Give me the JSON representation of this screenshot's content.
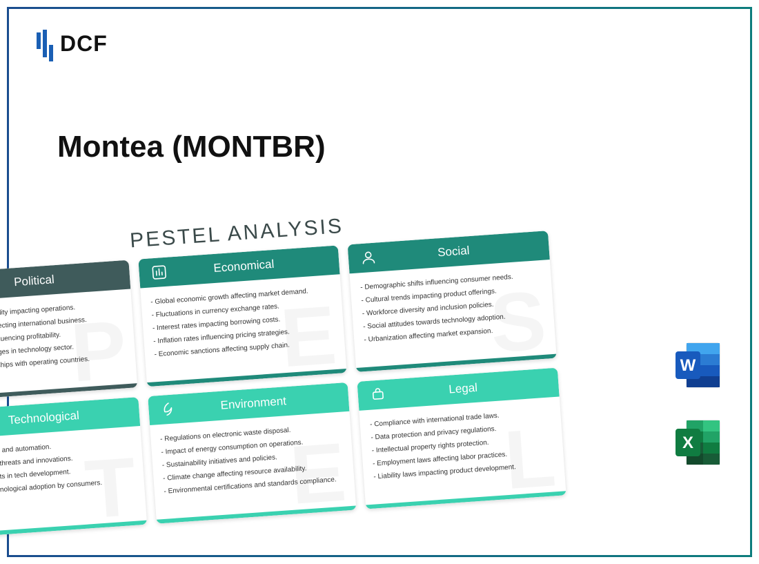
{
  "logo_text": "DCF",
  "page_title": "Montea (MONTBR)",
  "pestel_heading": "PESTEL ANALYSIS",
  "colors": {
    "frame_gradient_start": "#1a4d8f",
    "frame_gradient_end": "#0d7d7d",
    "logo_bar": "#1a5fb4",
    "word_blue": "#2b579a",
    "excel_green": "#217346"
  },
  "cards": [
    {
      "title": "Political",
      "bg_letter": "P",
      "head_color": "#3f5b5b",
      "foot_color": "#3f5b5b",
      "icon": "political",
      "items": [
        "- Government stability impacting operations.",
        "- Trade policies affecting international business.",
        "- Taxation rates influencing profitability.",
        "- Regulatory changes in technology sector.",
        "- Political relationships with operating countries."
      ]
    },
    {
      "title": "Economical",
      "bg_letter": "E",
      "head_color": "#1f8a7a",
      "foot_color": "#1f8a7a",
      "icon": "economical",
      "items": [
        "- Global economic growth affecting market demand.",
        "- Fluctuations in currency exchange rates.",
        "- Interest rates impacting borrowing costs.",
        "- Inflation rates influencing pricing strategies.",
        "- Economic sanctions affecting supply chain."
      ]
    },
    {
      "title": "Social",
      "bg_letter": "S",
      "head_color": "#1f8a7a",
      "foot_color": "#1f8a7a",
      "icon": "social",
      "items": [
        "- Demographic shifts influencing consumer needs.",
        "- Cultural trends impacting product offerings.",
        "- Workforce diversity and inclusion policies.",
        "- Social attitudes towards technology adoption.",
        "- Urbanization affecting market expansion."
      ]
    },
    {
      "title": "Technological",
      "bg_letter": "T",
      "head_color": "#3ad1b0",
      "foot_color": "#3ad1b0",
      "icon": "technological",
      "items": [
        "- Advances in AI and automation.",
        "- Cybersecurity threats and innovations.",
        "- High R&D costs in tech development.",
        "- Speed of technological adoption by consumers."
      ]
    },
    {
      "title": "Environment",
      "bg_letter": "E",
      "head_color": "#3ad1b0",
      "foot_color": "#3ad1b0",
      "icon": "environment",
      "items": [
        "- Regulations on electronic waste disposal.",
        "- Impact of energy consumption on operations.",
        "- Sustainability initiatives and policies.",
        "- Climate change affecting resource availability.",
        "- Environmental certifications and standards compliance."
      ]
    },
    {
      "title": "Legal",
      "bg_letter": "L",
      "head_color": "#3ad1b0",
      "foot_color": "#3ad1b0",
      "icon": "legal",
      "items": [
        "- Compliance with international trade laws.",
        "- Data protection and privacy regulations.",
        "- Intellectual property rights protection.",
        "- Employment laws affecting labor practices.",
        "- Liability laws impacting product development."
      ]
    }
  ],
  "app_icons": [
    {
      "name": "word",
      "letter": "W"
    },
    {
      "name": "excel",
      "letter": "X"
    }
  ]
}
